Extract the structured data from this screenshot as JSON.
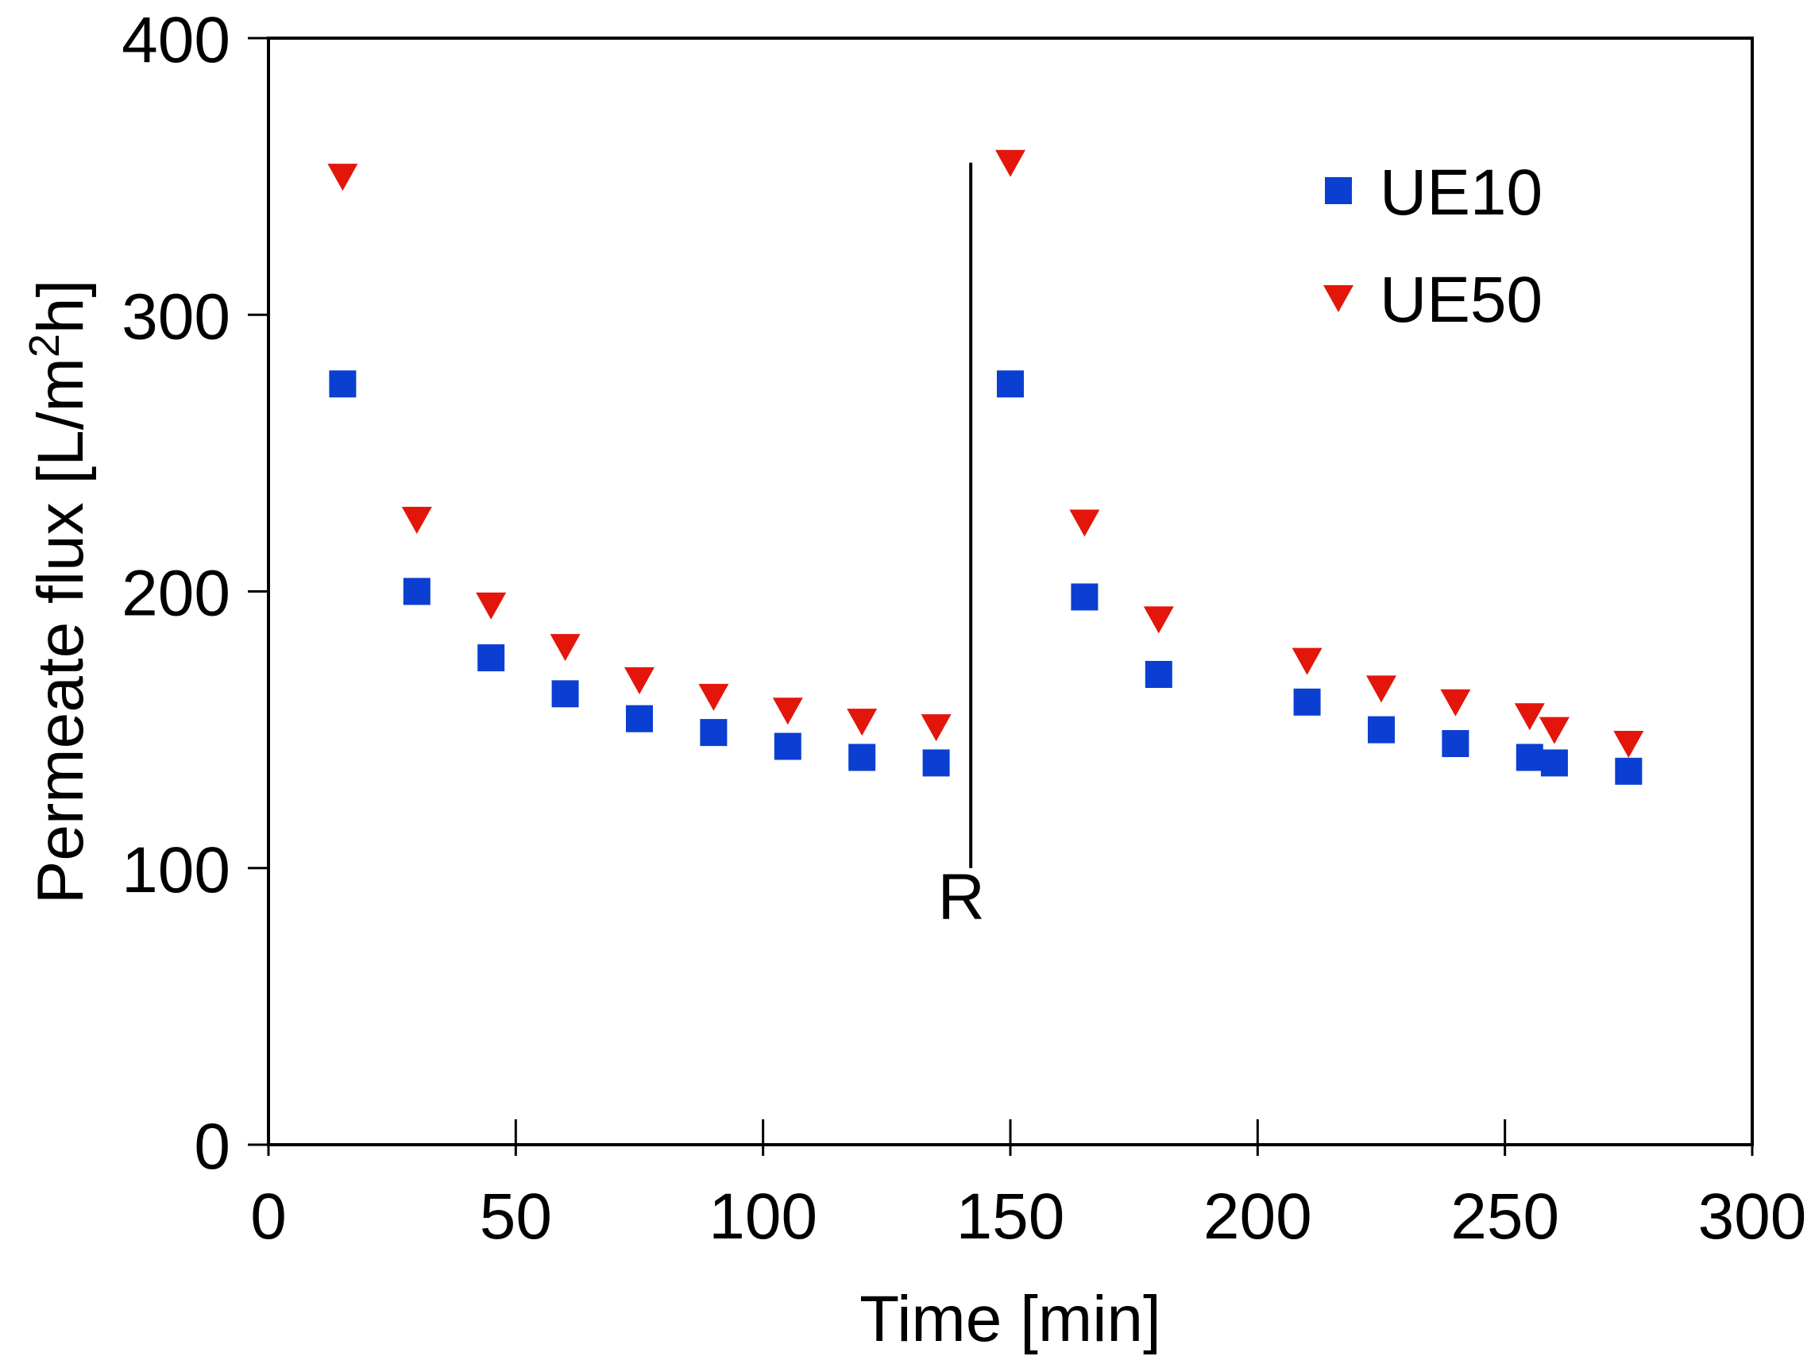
{
  "chart_data": {
    "type": "scatter",
    "title": "",
    "xlabel": "Time [min]",
    "ylabel": "Permeate flux [L/m",
    "ylabel_sup": "2",
    "ylabel_tail": "h]",
    "xlim": [
      0,
      300
    ],
    "ylim": [
      0,
      400
    ],
    "xticks": [
      0,
      50,
      100,
      150,
      200,
      250,
      300
    ],
    "yticks": [
      0,
      100,
      200,
      300,
      400
    ],
    "grid": false,
    "legend_position": "top-right",
    "series": [
      {
        "name": "UE10",
        "marker": "square",
        "color": "#0a3fd2",
        "x": [
          15,
          30,
          45,
          60,
          75,
          90,
          105,
          120,
          135,
          150,
          165,
          180,
          210,
          225,
          240,
          255,
          260,
          275
        ],
        "y": [
          275,
          200,
          176,
          163,
          154,
          149,
          144,
          140,
          138,
          275,
          198,
          170,
          160,
          150,
          145,
          140,
          138,
          135
        ]
      },
      {
        "name": "UE50",
        "marker": "triangle-down",
        "color": "#e3160b",
        "x": [
          15,
          30,
          45,
          60,
          75,
          90,
          105,
          120,
          135,
          150,
          165,
          180,
          210,
          225,
          240,
          255,
          260,
          275
        ],
        "y": [
          350,
          226,
          195,
          180,
          168,
          162,
          157,
          153,
          151,
          355,
          225,
          190,
          175,
          165,
          160,
          155,
          150,
          145
        ]
      }
    ],
    "annotations": [
      {
        "type": "vertical-line",
        "x": 142,
        "y_from": 100,
        "y_to": 355,
        "label": "R"
      }
    ]
  }
}
